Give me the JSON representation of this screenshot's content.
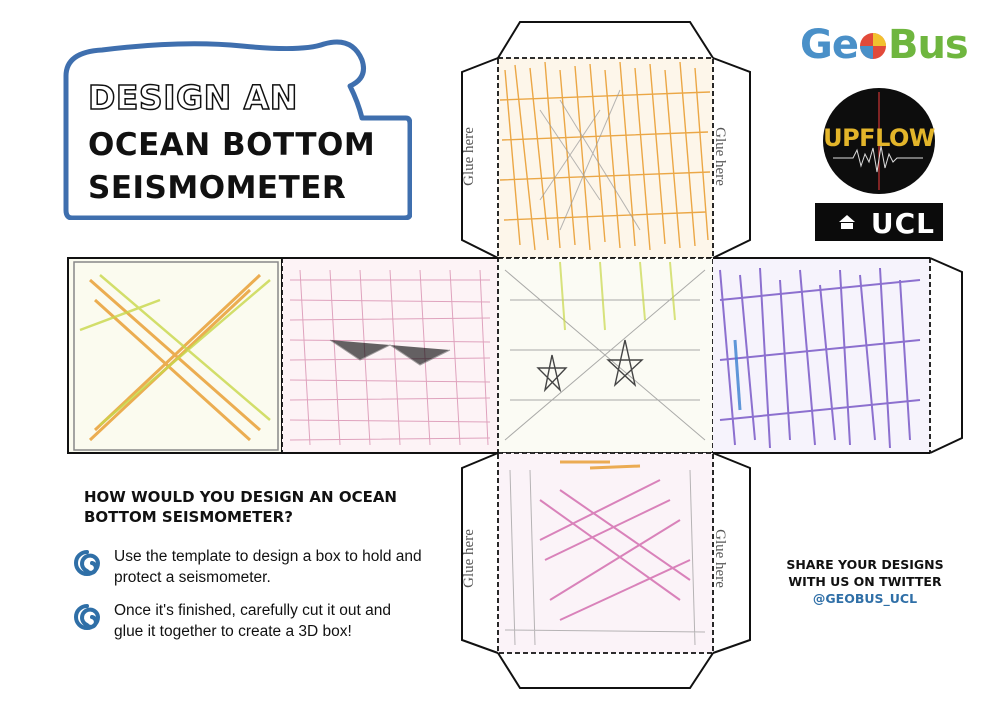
{
  "title": {
    "line1": "DESIGN AN",
    "line2": "OCEAN BOTTOM",
    "line3": "SEISMOMETER"
  },
  "net_labels": {
    "glue": "Glue here"
  },
  "question": "HOW WOULD YOU DESIGN AN OCEAN BOTTOM SEISMOMETER?",
  "steps": [
    "Use the template to design a box to hold and protect a seismometer.",
    "Once it's finished, carefully cut it out and glue it together to create a 3D box!"
  ],
  "share": {
    "line1": "SHARE YOUR DESIGNS",
    "line2": "WITH US ON TWITTER",
    "handle": "@GEOBUS_UCL"
  },
  "logos": {
    "geobus_geo": "Ge",
    "geobus_bus": "Bus",
    "upflow": "UPFLOW",
    "ucl": "UCL"
  },
  "colors": {
    "frame_blue": "#3f6fae",
    "crayon_orange": "#e89a2a",
    "crayon_purple": "#7a5ac8",
    "crayon_pink": "#d46fb0",
    "crayon_green": "#c8d84a"
  }
}
